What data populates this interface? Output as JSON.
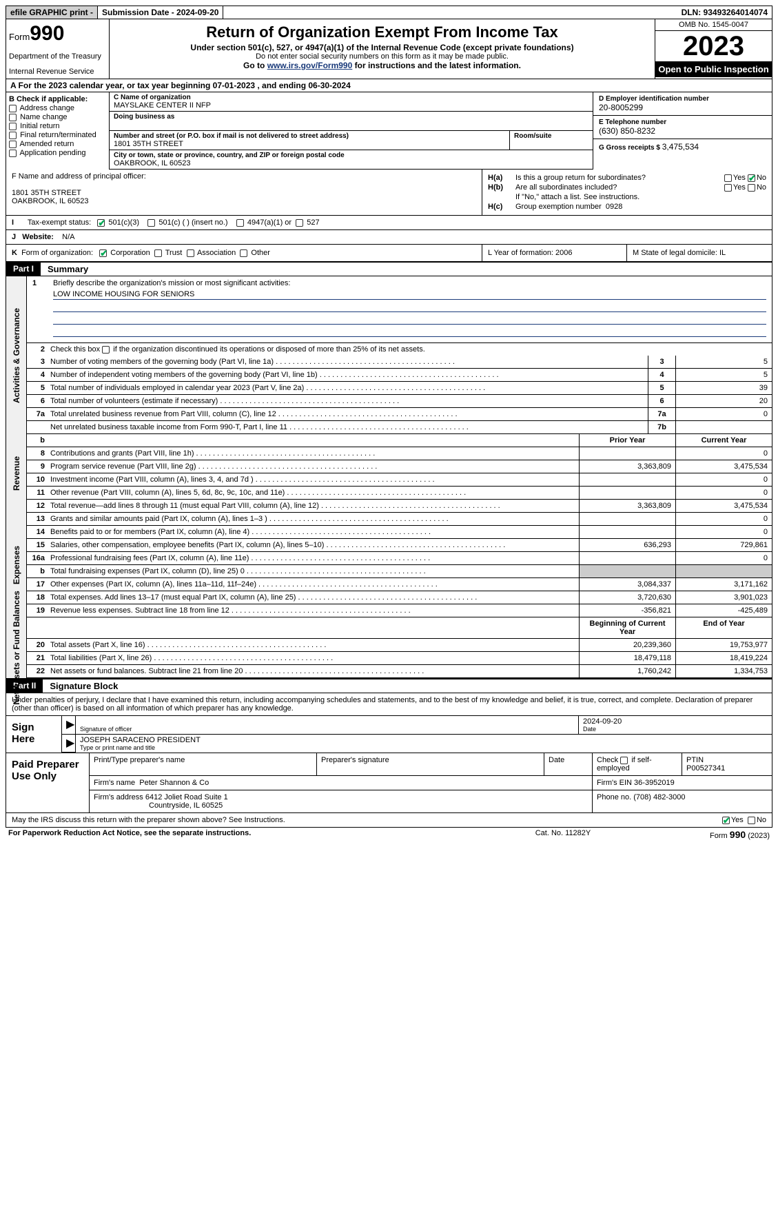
{
  "topbar": {
    "efile": "efile GRAPHIC print -",
    "submission": "Submission Date - 2024-09-20",
    "dln": "DLN: 93493264014074"
  },
  "header": {
    "form_prefix": "Form",
    "form_number": "990",
    "dept": "Department of the Treasury",
    "irs": "Internal Revenue Service",
    "title": "Return of Organization Exempt From Income Tax",
    "sub1": "Under section 501(c), 527, or 4947(a)(1) of the Internal Revenue Code (except private foundations)",
    "sub2": "Do not enter social security numbers on this form as it may be made public.",
    "link_pre": "Go to ",
    "link_url": "www.irs.gov/Form990",
    "link_post": " for instructions and the latest information.",
    "omb": "OMB No. 1545-0047",
    "year": "2023",
    "inspect": "Open to Public Inspection"
  },
  "row_a": "A For the 2023 calendar year, or tax year beginning 07-01-2023   , and ending 06-30-2024",
  "box_b": {
    "header": "B Check if applicable:",
    "opt1": "Address change",
    "opt2": "Name change",
    "opt3": "Initial return",
    "opt4": "Final return/terminated",
    "opt5": "Amended return",
    "opt6": "Application pending"
  },
  "box_c": {
    "name_lbl": "C Name of organization",
    "name": "MAYSLAKE CENTER II NFP",
    "dba_lbl": "Doing business as",
    "street_lbl": "Number and street (or P.O. box if mail is not delivered to street address)",
    "street": "1801 35TH STREET",
    "room_lbl": "Room/suite",
    "city_lbl": "City or town, state or province, country, and ZIP or foreign postal code",
    "city": "OAKBROOK, IL  60523"
  },
  "box_d": {
    "ein_lbl": "D Employer identification number",
    "ein": "20-8005299",
    "tel_lbl": "E Telephone number",
    "tel": "(630) 850-8232",
    "gross_lbl": "G Gross receipts $ ",
    "gross": "3,475,534"
  },
  "box_f": {
    "lbl": "F Name and address of principal officer:",
    "addr1": "1801 35TH STREET",
    "addr2": "OAKBROOK, IL  60523"
  },
  "box_h": {
    "ha_lbl": "H(a)",
    "ha_txt": "Is this a group return for subordinates?",
    "hb_lbl": "H(b)",
    "hb_txt": "Are all subordinates included?",
    "hb_note": "If \"No,\" attach a list. See instructions.",
    "hc_lbl": "H(c)",
    "hc_txt": "Group exemption number  ",
    "hc_val": "0928",
    "yes": "Yes",
    "no": "No"
  },
  "row_i": {
    "label": "I",
    "text": "Tax-exempt status:",
    "opt1": "501(c)(3)",
    "opt2": "501(c) (   ) (insert no.)",
    "opt3": "4947(a)(1) or",
    "opt4": "527"
  },
  "row_j": {
    "label": "J",
    "text": "Website: ",
    "val": "N/A"
  },
  "row_k": {
    "label": "K",
    "text": "Form of organization:",
    "opt1": "Corporation",
    "opt2": "Trust",
    "opt3": "Association",
    "opt4": "Other"
  },
  "row_l": {
    "text": "L Year of formation: 2006"
  },
  "row_m": {
    "text": "M State of legal domicile: IL"
  },
  "part1": {
    "tab": "Part I",
    "title": "Summary"
  },
  "summary": {
    "side1": "Activities & Governance",
    "side2": "Revenue",
    "side3": "Expenses",
    "side4": "Net Assets or Fund Balances",
    "line1_lbl": "Briefly describe the organization's mission or most significant activities:",
    "line1_val": "LOW INCOME HOUSING FOR SENIORS",
    "line2": "Check this box      if the organization discontinued its operations or disposed of more than 25% of its net assets.",
    "rows_gov": [
      {
        "n": "3",
        "d": "Number of voting members of the governing body (Part VI, line 1a)",
        "b": "3",
        "v": "5"
      },
      {
        "n": "4",
        "d": "Number of independent voting members of the governing body (Part VI, line 1b)",
        "b": "4",
        "v": "5"
      },
      {
        "n": "5",
        "d": "Total number of individuals employed in calendar year 2023 (Part V, line 2a)",
        "b": "5",
        "v": "39"
      },
      {
        "n": "6",
        "d": "Total number of volunteers (estimate if necessary)",
        "b": "6",
        "v": "20"
      },
      {
        "n": "7a",
        "d": "Total unrelated business revenue from Part VIII, column (C), line 12",
        "b": "7a",
        "v": "0"
      },
      {
        "n": "",
        "d": "Net unrelated business taxable income from Form 990-T, Part I, line 11",
        "b": "7b",
        "v": ""
      }
    ],
    "hdr_prior": "Prior Year",
    "hdr_curr": "Current Year",
    "rows_rev": [
      {
        "n": "8",
        "d": "Contributions and grants (Part VIII, line 1h)",
        "p": "",
        "c": "0"
      },
      {
        "n": "9",
        "d": "Program service revenue (Part VIII, line 2g)",
        "p": "3,363,809",
        "c": "3,475,534"
      },
      {
        "n": "10",
        "d": "Investment income (Part VIII, column (A), lines 3, 4, and 7d )",
        "p": "",
        "c": "0"
      },
      {
        "n": "11",
        "d": "Other revenue (Part VIII, column (A), lines 5, 6d, 8c, 9c, 10c, and 11e)",
        "p": "",
        "c": "0"
      },
      {
        "n": "12",
        "d": "Total revenue—add lines 8 through 11 (must equal Part VIII, column (A), line 12)",
        "p": "3,363,809",
        "c": "3,475,534"
      }
    ],
    "rows_exp": [
      {
        "n": "13",
        "d": "Grants and similar amounts paid (Part IX, column (A), lines 1–3 )",
        "p": "",
        "c": "0"
      },
      {
        "n": "14",
        "d": "Benefits paid to or for members (Part IX, column (A), line 4)",
        "p": "",
        "c": "0"
      },
      {
        "n": "15",
        "d": "Salaries, other compensation, employee benefits (Part IX, column (A), lines 5–10)",
        "p": "636,293",
        "c": "729,861"
      },
      {
        "n": "16a",
        "d": "Professional fundraising fees (Part IX, column (A), line 11e)",
        "p": "",
        "c": "0"
      },
      {
        "n": "b",
        "d": "Total fundraising expenses (Part IX, column (D), line 25) 0",
        "p": "grey",
        "c": "grey"
      },
      {
        "n": "17",
        "d": "Other expenses (Part IX, column (A), lines 11a–11d, 11f–24e)",
        "p": "3,084,337",
        "c": "3,171,162"
      },
      {
        "n": "18",
        "d": "Total expenses. Add lines 13–17 (must equal Part IX, column (A), line 25)",
        "p": "3,720,630",
        "c": "3,901,023"
      },
      {
        "n": "19",
        "d": "Revenue less expenses. Subtract line 18 from line 12",
        "p": "-356,821",
        "c": "-425,489"
      }
    ],
    "hdr_beg": "Beginning of Current Year",
    "hdr_end": "End of Year",
    "rows_net": [
      {
        "n": "20",
        "d": "Total assets (Part X, line 16)",
        "p": "20,239,360",
        "c": "19,753,977"
      },
      {
        "n": "21",
        "d": "Total liabilities (Part X, line 26)",
        "p": "18,479,118",
        "c": "18,419,224"
      },
      {
        "n": "22",
        "d": "Net assets or fund balances. Subtract line 21 from line 20",
        "p": "1,760,242",
        "c": "1,334,753"
      }
    ]
  },
  "part2": {
    "tab": "Part II",
    "title": "Signature Block"
  },
  "sig_para": "Under penalties of perjury, I declare that I have examined this return, including accompanying schedules and statements, and to the best of my knowledge and belief, it is true, correct, and complete. Declaration of preparer (other than officer) is based on all information of which preparer has any knowledge.",
  "sign": {
    "label": "Sign Here",
    "date": "2024-09-20",
    "sig_lbl": "Signature of officer",
    "name": "JOSEPH SARACENO PRESIDENT",
    "name_lbl": "Type or print name and title",
    "date_lbl": "Date"
  },
  "prep": {
    "label": "Paid Preparer Use Only",
    "h1": "Print/Type preparer's name",
    "h2": "Preparer's signature",
    "h3": "Date",
    "h4_pre": "Check",
    "h4_post": "if self-employed",
    "h5": "PTIN",
    "ptin": "P00527341",
    "firm_lbl": "Firm's name  ",
    "firm": "Peter Shannon & Co",
    "ein_lbl": "Firm's EIN  ",
    "ein": "36-3952019",
    "addr_lbl": "Firm's address ",
    "addr1": "6412 Joliet Road Suite 1",
    "addr2": "Countryside, IL  60525",
    "phone_lbl": "Phone no. ",
    "phone": "(708) 482-3000"
  },
  "discuss": {
    "text": "May the IRS discuss this return with the preparer shown above? See Instructions.",
    "yes": "Yes",
    "no": "No"
  },
  "footer": {
    "f1": "For Paperwork Reduction Act Notice, see the separate instructions.",
    "f2": "Cat. No. 11282Y",
    "f3a": "Form ",
    "f3b": "990",
    "f3c": " (2023)"
  }
}
